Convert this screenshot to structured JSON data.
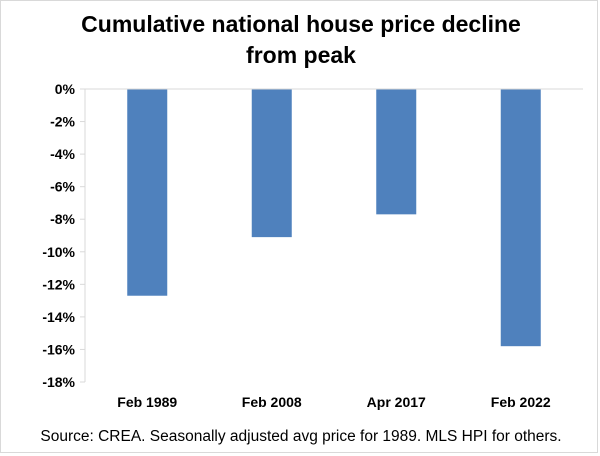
{
  "chart_data": {
    "type": "bar",
    "title": "Cumulative national house price decline from peak",
    "title_lines": [
      "Cumulative national house price decline",
      "from peak"
    ],
    "categories": [
      "Feb 1989",
      "Feb 2008",
      "Apr 2017",
      "Feb 2022"
    ],
    "values": [
      -12.7,
      -9.1,
      -7.7,
      -15.8
    ],
    "ylim": [
      -18,
      0
    ],
    "yticks": [
      0,
      -2,
      -4,
      -6,
      -8,
      -10,
      -12,
      -14,
      -16,
      -18
    ],
    "ytick_labels": [
      "0%",
      "-2%",
      "-4%",
      "-6%",
      "-8%",
      "-10%",
      "-12%",
      "-14%",
      "-16%",
      "-18%"
    ],
    "xlabel": "",
    "ylabel": "",
    "grid": false,
    "bar_color": "#4f81bd",
    "axis_color": "#d9d9d9"
  },
  "source": "Source:  CREA.  Seasonally adjusted avg price for 1989. MLS HPI for others."
}
